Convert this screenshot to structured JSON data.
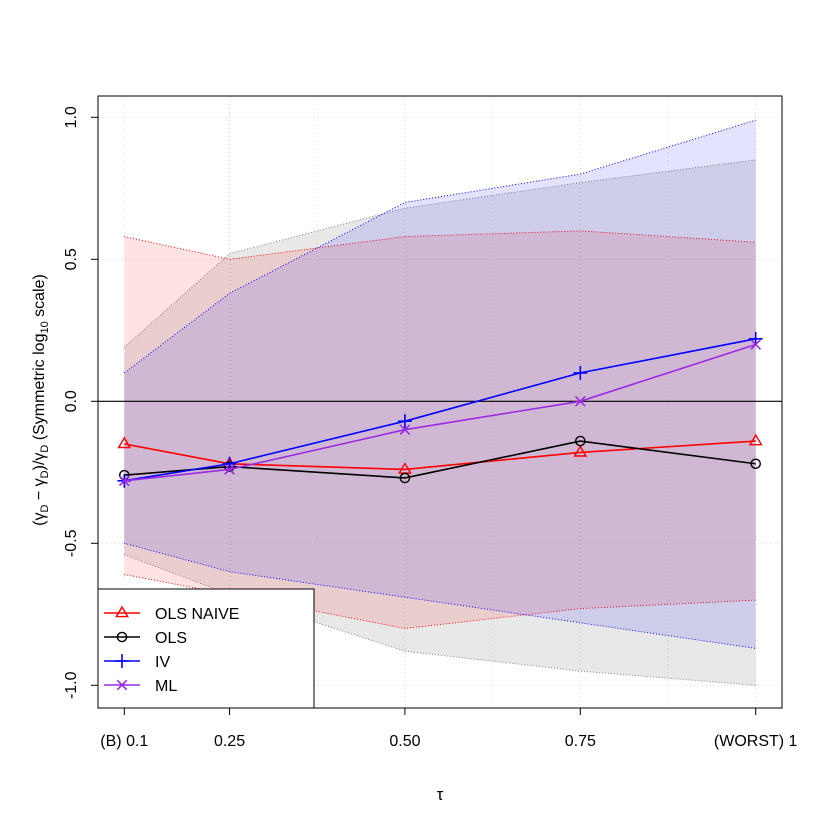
{
  "chart_data": {
    "type": "line",
    "title": "",
    "xlabel": "τ",
    "ylabel": {
      "open_paren": "(",
      "hat_gamma": "γ",
      "sub1": "D",
      "minus": " − γ",
      "sub2": "D",
      "close_div": ")/γ",
      "sub3": "D",
      "text": " (Symmetric log",
      "sub4": "10",
      "text2": " scale)"
    },
    "x": [
      0.1,
      0.25,
      0.5,
      0.75,
      1.0
    ],
    "x_ticks": [
      {
        "value": 0.1,
        "label": "(B) 0.1"
      },
      {
        "value": 0.25,
        "label": "0.25"
      },
      {
        "value": 0.5,
        "label": "0.50"
      },
      {
        "value": 0.75,
        "label": "0.75"
      },
      {
        "value": 1.0,
        "label": "(WORST) 1"
      }
    ],
    "y_ticks": [
      {
        "value": 1.0,
        "label": "1.0"
      },
      {
        "value": 0.5,
        "label": "0.5"
      },
      {
        "value": 0.0,
        "label": "0.0"
      },
      {
        "value": -0.5,
        "label": "-0.5"
      },
      {
        "value": -1.0,
        "label": "-1.0"
      }
    ],
    "xlim": [
      0.0625,
      1.0375
    ],
    "ylim": [
      -1.08,
      1.075
    ],
    "reference_line_y": 0,
    "grid": true,
    "legend_position": "bottom-left",
    "bands": [
      {
        "series": "OLS",
        "color": "#808080",
        "fill": "rgba(150,150,150,0.22)",
        "lower": [
          -0.54,
          -0.68,
          -0.88,
          -0.95,
          -1.0
        ],
        "upper": [
          0.19,
          0.52,
          0.68,
          0.77,
          0.85
        ]
      },
      {
        "series": "OLS NAIVE",
        "color": "#ff0000",
        "fill": "rgba(255,0,0,0.11)",
        "lower": [
          -0.61,
          -0.68,
          -0.8,
          -0.73,
          -0.7
        ],
        "upper": [
          0.58,
          0.5,
          0.58,
          0.6,
          0.56
        ]
      },
      {
        "series": "IV",
        "color": "#0000ff",
        "fill": "rgba(0,0,255,0.11)",
        "lower": [
          -0.5,
          -0.6,
          -0.69,
          -0.78,
          -0.87
        ],
        "upper": [
          0.1,
          0.38,
          0.7,
          0.8,
          0.99
        ]
      }
    ],
    "series": [
      {
        "name": "OLS NAIVE",
        "color": "#ff0000",
        "marker": "triangle",
        "values": [
          -0.15,
          -0.22,
          -0.24,
          -0.18,
          -0.14
        ]
      },
      {
        "name": "OLS",
        "color": "#000000",
        "marker": "circle",
        "values": [
          -0.26,
          -0.23,
          -0.27,
          -0.14,
          -0.22
        ]
      },
      {
        "name": "IV",
        "color": "#0000ff",
        "marker": "plus",
        "values": [
          -0.28,
          -0.22,
          -0.07,
          0.1,
          0.22
        ]
      },
      {
        "name": "ML",
        "color": "#9a2be2",
        "marker": "cross",
        "values": [
          -0.28,
          -0.24,
          -0.1,
          0.0,
          0.2
        ]
      }
    ]
  }
}
